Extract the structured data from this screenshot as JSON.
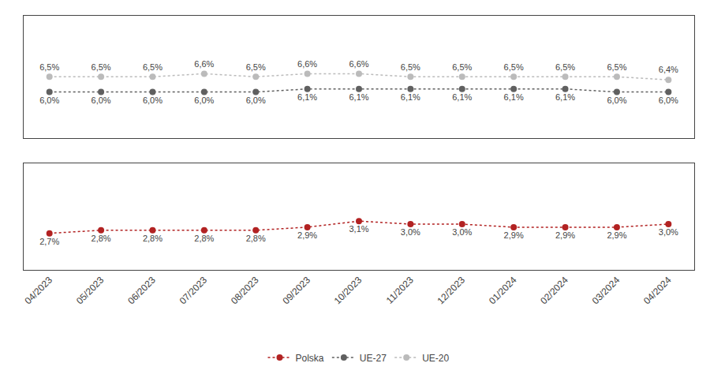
{
  "chart_data": {
    "type": "line",
    "categories": [
      "04/2023",
      "05/2023",
      "06/2023",
      "07/2023",
      "08/2023",
      "09/2023",
      "10/2023",
      "11/2023",
      "12/2023",
      "01/2024",
      "02/2024",
      "03/2024",
      "04/2024"
    ],
    "series": [
      {
        "name": "Polska",
        "color": "#B22222",
        "axis": "y2",
        "marker": "circle",
        "line_style": "dotted",
        "values": [
          2.7,
          2.8,
          2.8,
          2.8,
          2.8,
          2.9,
          3.1,
          3.0,
          3.0,
          2.9,
          2.9,
          2.9,
          3.0
        ],
        "value_labels": [
          "2,7%",
          "2,8%",
          "2,8%",
          "2,8%",
          "2,8%",
          "2,9%",
          "3,1%",
          "3,0%",
          "3,0%",
          "2,9%",
          "2,9%",
          "2,9%",
          "3,0%"
        ]
      },
      {
        "name": "UE-27",
        "color": "#606060",
        "marker": "circle",
        "line_style": "dotted",
        "values": [
          6.0,
          6.0,
          6.0,
          6.0,
          6.0,
          6.1,
          6.1,
          6.1,
          6.1,
          6.1,
          6.1,
          6.0,
          6.0
        ],
        "value_labels": [
          "6,0%",
          "6,0%",
          "6,0%",
          "6,0%",
          "6,0%",
          "6,1%",
          "6,1%",
          "6,1%",
          "6,1%",
          "6,1%",
          "6,1%",
          "6,0%",
          "6,0%"
        ]
      },
      {
        "name": "UE-20",
        "color": "#BBBBBB",
        "marker": "circle",
        "line_style": "dotted",
        "values": [
          6.5,
          6.5,
          6.5,
          6.6,
          6.5,
          6.6,
          6.6,
          6.5,
          6.5,
          6.5,
          6.5,
          6.5,
          6.4
        ],
        "value_labels": [
          "6,5%",
          "6,5%",
          "6,5%",
          "6,6%",
          "6,5%",
          "6,6%",
          "6,6%",
          "6,5%",
          "6,5%",
          "6,5%",
          "6,5%",
          "6,5%",
          "6,4%"
        ]
      }
    ],
    "ylim": [
      4.5,
      8.5
    ],
    "y2lim": [
      1.5,
      5.0
    ],
    "data_labels": true,
    "tick_labels": "x",
    "grid": false,
    "legend": "bottom"
  }
}
